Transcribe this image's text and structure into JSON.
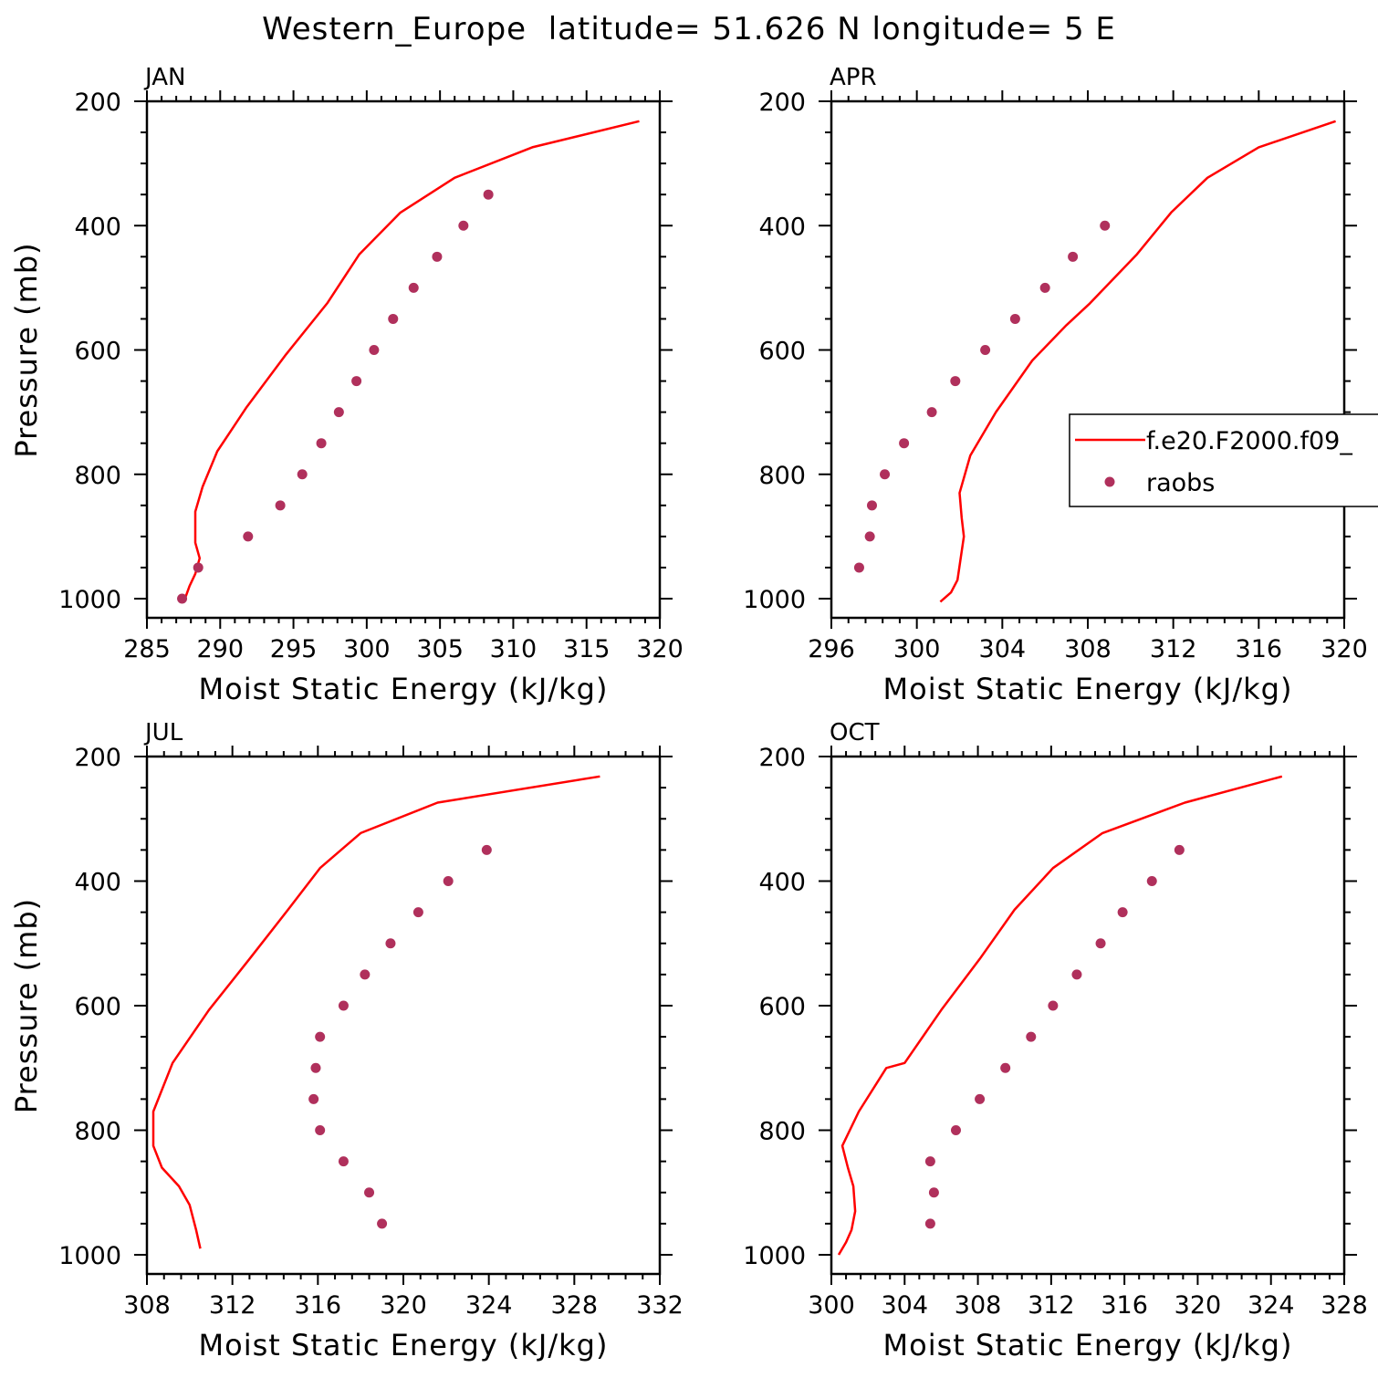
{
  "title": "Western_Europe  latitude= 51.626 N longitude= 5 E",
  "legend": {
    "items": [
      "f.e20.F2000.f09_",
      "raobs"
    ]
  },
  "colors": {
    "model": "#ff0000",
    "obs": "#b0305c",
    "axis": "#000000"
  },
  "chart_data": [
    {
      "type": "line",
      "panel": "JAN",
      "xlabel": "Moist Static Energy (kJ/kg)",
      "ylabel": "Pressure (mb)",
      "xlim": [
        285,
        320
      ],
      "ylim": [
        1000,
        200
      ],
      "xticks": [
        285,
        290,
        295,
        300,
        305,
        310,
        315,
        320
      ],
      "xticklabels": [
        "285",
        "290",
        "295",
        "300",
        "305",
        "310",
        "315",
        "320"
      ],
      "yticks": [
        200,
        400,
        600,
        800,
        1000
      ],
      "yticklabels": [
        "200",
        "400",
        "600",
        "800",
        "1000"
      ],
      "series": [
        {
          "name": "f.e20.F2000.f09_",
          "kind": "line",
          "x": [
            318.6,
            311.3,
            306.0,
            302.3,
            299.5,
            297.3,
            294.5,
            291.8,
            289.8,
            288.8,
            288.3,
            288.3,
            288.6,
            288.3,
            287.9,
            287.6
          ],
          "y": [
            232,
            274,
            323,
            379,
            446,
            525,
            607,
            692,
            763,
            820,
            860,
            910,
            935,
            960,
            980,
            1000
          ]
        },
        {
          "name": "raobs",
          "kind": "scatter",
          "x": [
            287.4,
            288.5,
            291.9,
            294.1,
            295.6,
            296.9,
            298.1,
            299.3,
            300.5,
            301.8,
            303.2,
            304.8,
            306.6,
            308.3
          ],
          "y": [
            1000,
            950,
            900,
            850,
            800,
            750,
            700,
            650,
            600,
            550,
            500,
            450,
            400,
            350
          ]
        }
      ]
    },
    {
      "type": "line",
      "panel": "APR",
      "xlabel": "Moist Static Energy (kJ/kg)",
      "ylabel": "",
      "xlim": [
        296,
        320
      ],
      "ylim": [
        1000,
        200
      ],
      "xticks": [
        296,
        300,
        304,
        308,
        312,
        316,
        320
      ],
      "xticklabels": [
        "296",
        "300",
        "304",
        "308",
        "312",
        "316",
        "320"
      ],
      "yticks": [
        200,
        400,
        600,
        800,
        1000
      ],
      "yticklabels": [
        "200",
        "400",
        "600",
        "800",
        "1000"
      ],
      "series": [
        {
          "name": "f.e20.F2000.f09_",
          "kind": "line",
          "x": [
            319.6,
            316.0,
            313.6,
            311.9,
            310.3,
            308.1,
            307.0,
            305.4,
            303.7,
            302.5,
            302.0,
            302.1,
            302.2,
            301.9,
            301.6,
            301.1
          ],
          "y": [
            232,
            274,
            323,
            379,
            446,
            525,
            560,
            617,
            700,
            770,
            830,
            870,
            900,
            970,
            990,
            1005
          ]
        },
        {
          "name": "raobs",
          "kind": "scatter",
          "x": [
            297.3,
            297.8,
            297.9,
            298.5,
            299.4,
            300.7,
            301.8,
            303.2,
            304.6,
            306.0,
            307.3,
            308.8
          ],
          "y": [
            950,
            900,
            850,
            800,
            750,
            700,
            650,
            600,
            550,
            500,
            450,
            400
          ]
        }
      ]
    },
    {
      "type": "line",
      "panel": "JUL",
      "xlabel": "Moist Static Energy (kJ/kg)",
      "ylabel": "Pressure (mb)",
      "xlim": [
        308,
        332
      ],
      "ylim": [
        1000,
        200
      ],
      "xticks": [
        308,
        312,
        316,
        320,
        324,
        328,
        332
      ],
      "xticklabels": [
        "308",
        "312",
        "316",
        "320",
        "324",
        "328",
        "332"
      ],
      "yticks": [
        200,
        400,
        600,
        800,
        1000
      ],
      "yticklabels": [
        "200",
        "400",
        "600",
        "800",
        "1000"
      ],
      "series": [
        {
          "name": "f.e20.F2000.f09_",
          "kind": "line",
          "x": [
            329.2,
            321.6,
            318.0,
            316.1,
            314.6,
            312.8,
            310.9,
            309.2,
            308.3,
            308.3,
            308.7,
            309.5,
            310.0,
            310.3,
            310.5
          ],
          "y": [
            232,
            274,
            323,
            379,
            446,
            525,
            607,
            692,
            770,
            825,
            860,
            890,
            920,
            960,
            990
          ]
        },
        {
          "name": "raobs",
          "kind": "scatter",
          "x": [
            319.0,
            318.4,
            317.2,
            316.1,
            315.8,
            315.9,
            316.1,
            317.2,
            318.2,
            319.4,
            320.7,
            322.1,
            323.9
          ],
          "y": [
            950,
            900,
            850,
            800,
            750,
            700,
            650,
            600,
            550,
            500,
            450,
            400,
            350
          ]
        }
      ]
    },
    {
      "type": "line",
      "panel": "OCT",
      "xlabel": "Moist Static Energy (kJ/kg)",
      "ylabel": "",
      "xlim": [
        300,
        328
      ],
      "ylim": [
        1000,
        200
      ],
      "xticks": [
        300,
        304,
        308,
        312,
        316,
        320,
        324,
        328
      ],
      "xticklabels": [
        "300",
        "304",
        "308",
        "312",
        "316",
        "320",
        "324",
        "328"
      ],
      "yticks": [
        200,
        400,
        600,
        800,
        1000
      ],
      "yticklabels": [
        "200",
        "400",
        "600",
        "800",
        "1000"
      ],
      "series": [
        {
          "name": "f.e20.F2000.f09_",
          "kind": "line",
          "x": [
            324.6,
            319.3,
            314.8,
            312.1,
            310.0,
            308.1,
            306.0,
            304.0,
            303.0,
            301.5,
            300.6,
            300.9,
            301.2,
            301.3,
            301.1,
            300.8,
            300.4
          ],
          "y": [
            232,
            274,
            323,
            379,
            446,
            525,
            607,
            692,
            700,
            770,
            825,
            860,
            890,
            930,
            960,
            980,
            1000
          ]
        },
        {
          "name": "raobs",
          "kind": "scatter",
          "x": [
            305.4,
            305.6,
            305.4,
            306.8,
            308.1,
            309.5,
            310.9,
            312.1,
            313.4,
            314.7,
            315.9,
            317.5,
            319.0
          ],
          "y": [
            950,
            900,
            850,
            800,
            750,
            700,
            650,
            600,
            550,
            500,
            450,
            400,
            350
          ]
        }
      ]
    }
  ]
}
